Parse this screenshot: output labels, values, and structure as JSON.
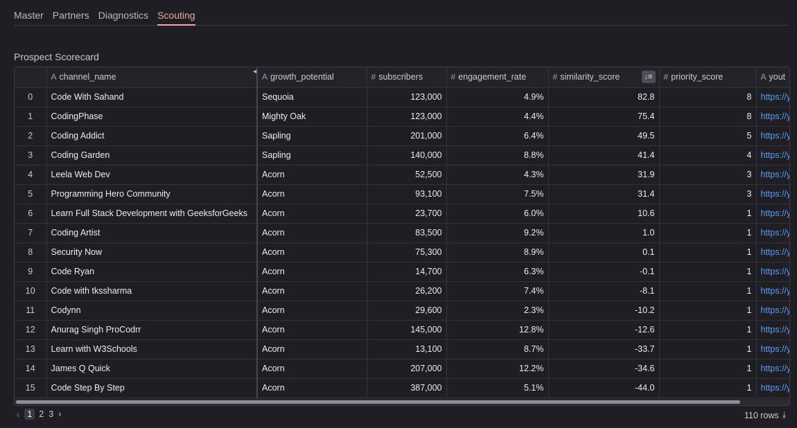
{
  "tabs": [
    "Master",
    "Partners",
    "Diagnostics",
    "Scouting"
  ],
  "active_tab": "Scouting",
  "section_title": "Prospect Scorecard",
  "columns": [
    {
      "name": "channel_name",
      "icon": "A"
    },
    {
      "name": "growth_potential",
      "icon": "A"
    },
    {
      "name": "subscribers",
      "icon": "#"
    },
    {
      "name": "engagement_rate",
      "icon": "#"
    },
    {
      "name": "similarity_score",
      "icon": "#"
    },
    {
      "name": "priority_score",
      "icon": "#"
    },
    {
      "name": "yout",
      "icon": "A"
    }
  ],
  "rows": [
    [
      "0",
      "Code With Sahand",
      "Sequoia",
      "123,000",
      "4.9%",
      "82.8",
      "8",
      "https://y"
    ],
    [
      "1",
      "CodingPhase",
      "Mighty Oak",
      "123,000",
      "4.4%",
      "75.4",
      "8",
      "https://y"
    ],
    [
      "2",
      "Coding Addict",
      "Sapling",
      "201,000",
      "6.4%",
      "49.5",
      "5",
      "https://y"
    ],
    [
      "3",
      "Coding Garden",
      "Sapling",
      "140,000",
      "8.8%",
      "41.4",
      "4",
      "https://y"
    ],
    [
      "4",
      "Leela Web Dev",
      "Acorn",
      "52,500",
      "4.3%",
      "31.9",
      "3",
      "https://y"
    ],
    [
      "5",
      "Programming Hero Community",
      "Acorn",
      "93,100",
      "7.5%",
      "31.4",
      "3",
      "https://y"
    ],
    [
      "6",
      "Learn Full Stack Development with GeeksforGeeks",
      "Acorn",
      "23,700",
      "6.0%",
      "10.6",
      "1",
      "https://y"
    ],
    [
      "7",
      "Coding Artist",
      "Acorn",
      "83,500",
      "9.2%",
      "1.0",
      "1",
      "https://y"
    ],
    [
      "8",
      "Security Now",
      "Acorn",
      "75,300",
      "8.9%",
      "0.1",
      "1",
      "https://y"
    ],
    [
      "9",
      "Code Ryan",
      "Acorn",
      "14,700",
      "6.3%",
      "-0.1",
      "1",
      "https://y"
    ],
    [
      "10",
      "Code with tkssharma",
      "Acorn",
      "26,200",
      "7.4%",
      "-8.1",
      "1",
      "https://y"
    ],
    [
      "11",
      "Codynn",
      "Acorn",
      "29,600",
      "2.3%",
      "-10.2",
      "1",
      "https://y"
    ],
    [
      "12",
      "Anurag Singh ProCodrr",
      "Acorn",
      "145,000",
      "12.8%",
      "-12.6",
      "1",
      "https://y"
    ],
    [
      "13",
      "Learn with W3Schools",
      "Acorn",
      "13,100",
      "8.7%",
      "-33.7",
      "1",
      "https://y"
    ],
    [
      "14",
      "James Q Quick",
      "Acorn",
      "207,000",
      "12.2%",
      "-34.6",
      "1",
      "https://y"
    ],
    [
      "15",
      "Code Step By Step",
      "Acorn",
      "387,000",
      "5.1%",
      "-44.0",
      "1",
      "https://y"
    ]
  ],
  "pagination": {
    "pages": [
      "1",
      "2",
      "3"
    ],
    "current": "1"
  },
  "row_count": "110 rows"
}
